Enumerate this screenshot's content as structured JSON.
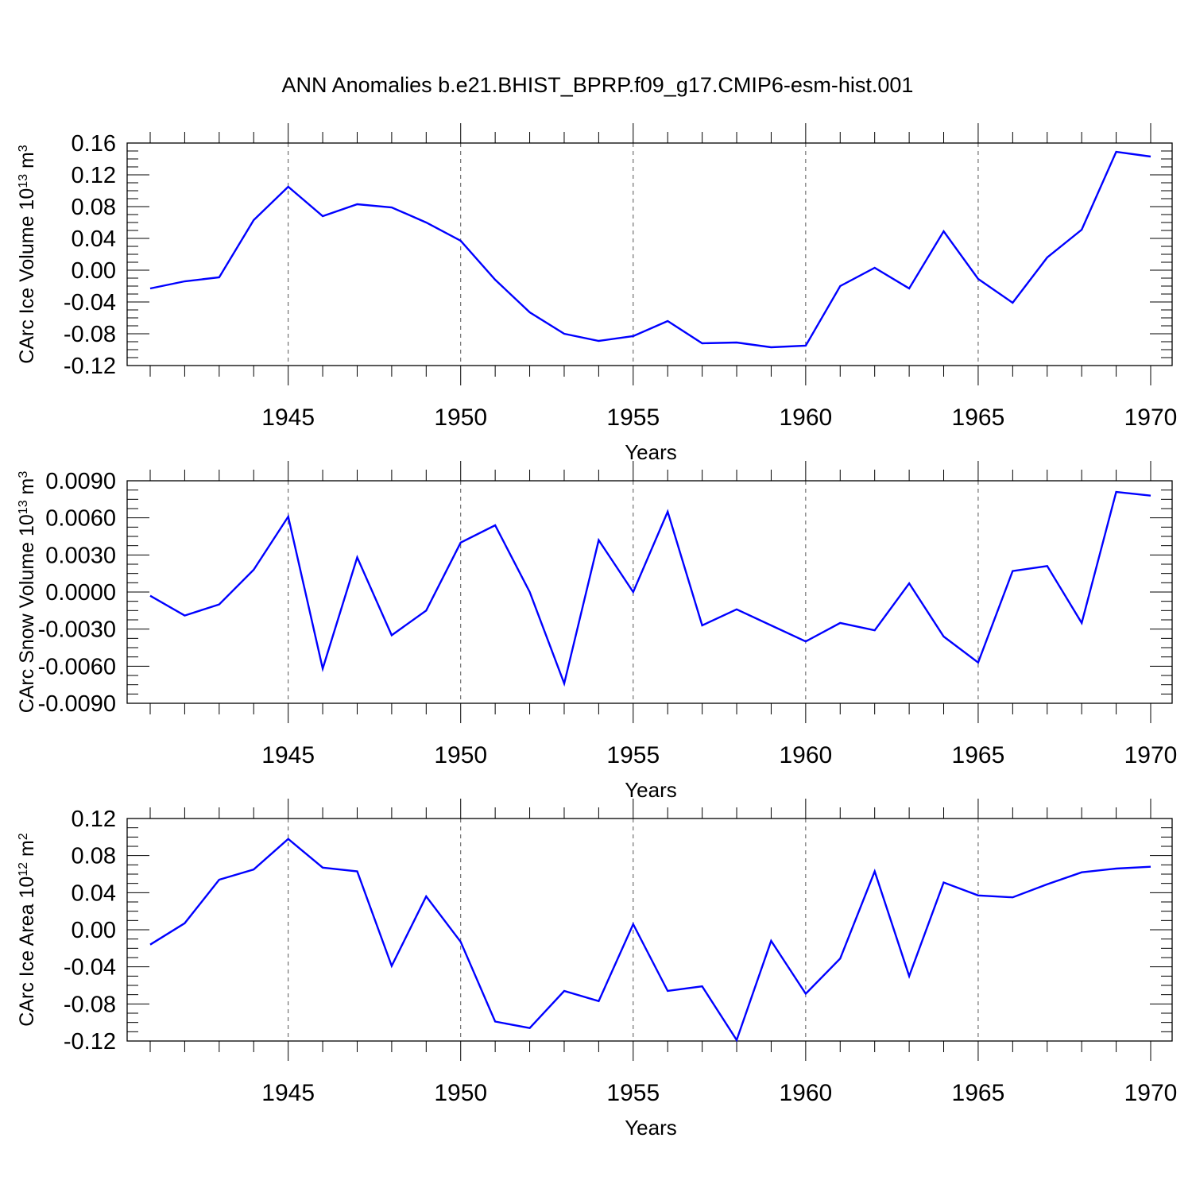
{
  "figure_title": "ANN Anomalies b.e21.BHIST_BPRP.f09_g17.CMIP6-esm-hist.001",
  "chart_data": [
    {
      "type": "line",
      "title": "",
      "xlabel": "Years",
      "ylabel": "CArc Ice Volume 10",
      "ylabel_sup1": "13",
      "ylabel_mid": " m",
      "ylabel_sup2": "3",
      "xlim": [
        1941,
        1970
      ],
      "ylim": [
        -0.12,
        0.16
      ],
      "xticks": [
        "1945",
        "1950",
        "1955",
        "1960",
        "1965",
        "1970"
      ],
      "yticks": [
        "0.16",
        "0.12",
        "0.08",
        "0.04",
        "0.00",
        "-0.04",
        "-0.08",
        "-0.12"
      ],
      "grid": "vertical-dashed",
      "line_color": "#0000ff",
      "series": [
        {
          "x": [
            1941,
            1942,
            1943,
            1944,
            1945,
            1946,
            1947,
            1948,
            1949,
            1950,
            1951,
            1952,
            1953,
            1954,
            1955,
            1956,
            1957,
            1958,
            1959,
            1960,
            1961,
            1962,
            1963,
            1964,
            1965,
            1966,
            1967,
            1968,
            1969,
            1970
          ],
          "values": [
            -0.023,
            -0.014,
            -0.009,
            0.063,
            0.105,
            0.068,
            0.083,
            0.079,
            0.06,
            0.037,
            -0.012,
            -0.053,
            -0.08,
            -0.089,
            -0.083,
            -0.064,
            -0.092,
            -0.091,
            -0.097,
            -0.095,
            -0.02,
            0.003,
            -0.023,
            0.049,
            -0.011,
            -0.041,
            0.016,
            0.051,
            0.149,
            0.143
          ]
        }
      ]
    },
    {
      "type": "line",
      "title": "",
      "xlabel": "Years",
      "ylabel": "CArc Snow Volume 10",
      "ylabel_sup1": "13",
      "ylabel_mid": " m",
      "ylabel_sup2": "3",
      "xlim": [
        1941,
        1970
      ],
      "ylim": [
        -0.009,
        0.009
      ],
      "xticks": [
        "1945",
        "1950",
        "1955",
        "1960",
        "1965",
        "1970"
      ],
      "yticks": [
        "0.0090",
        "0.0060",
        "0.0030",
        "0.0000",
        "-0.0030",
        "-0.0060",
        "-0.0090"
      ],
      "grid": "vertical-dashed",
      "line_color": "#0000ff",
      "series": [
        {
          "x": [
            1941,
            1942,
            1943,
            1944,
            1945,
            1946,
            1947,
            1948,
            1949,
            1950,
            1951,
            1952,
            1953,
            1954,
            1955,
            1956,
            1957,
            1958,
            1959,
            1960,
            1961,
            1962,
            1963,
            1964,
            1965,
            1966,
            1967,
            1968,
            1969,
            1970
          ],
          "values": [
            -0.0003,
            -0.0019,
            -0.001,
            0.0018,
            0.0061,
            -0.0062,
            0.0028,
            -0.0035,
            -0.0015,
            0.004,
            0.0054,
            0.0,
            -0.0074,
            0.0042,
            0.0,
            0.0065,
            -0.0027,
            -0.0014,
            -0.0027,
            -0.004,
            -0.0025,
            -0.0031,
            0.0007,
            -0.0036,
            -0.0057,
            0.0017,
            0.0021,
            -0.0025,
            0.0081,
            0.0078
          ]
        }
      ]
    },
    {
      "type": "line",
      "title": "",
      "xlabel": "Years",
      "ylabel": "CArc Ice Area 10",
      "ylabel_sup1": "12",
      "ylabel_mid": " m",
      "ylabel_sup2": "2",
      "xlim": [
        1941,
        1970
      ],
      "ylim": [
        -0.12,
        0.12
      ],
      "xticks": [
        "1945",
        "1950",
        "1955",
        "1960",
        "1965",
        "1970"
      ],
      "yticks": [
        "0.12",
        "0.08",
        "0.04",
        "0.00",
        "-0.04",
        "-0.08",
        "-0.12"
      ],
      "grid": "vertical-dashed",
      "line_color": "#0000ff",
      "series": [
        {
          "x": [
            1941,
            1942,
            1943,
            1944,
            1945,
            1946,
            1947,
            1948,
            1949,
            1950,
            1951,
            1952,
            1953,
            1954,
            1955,
            1956,
            1957,
            1958,
            1959,
            1960,
            1961,
            1962,
            1963,
            1964,
            1965,
            1966,
            1967,
            1968,
            1969,
            1970
          ],
          "values": [
            -0.016,
            0.007,
            0.054,
            0.065,
            0.098,
            0.067,
            0.063,
            -0.039,
            0.036,
            -0.013,
            -0.099,
            -0.106,
            -0.066,
            -0.077,
            0.006,
            -0.066,
            -0.061,
            -0.119,
            -0.012,
            -0.069,
            -0.031,
            0.063,
            -0.05,
            0.051,
            0.037,
            0.035,
            0.049,
            0.062,
            0.066,
            0.068
          ]
        }
      ]
    }
  ]
}
